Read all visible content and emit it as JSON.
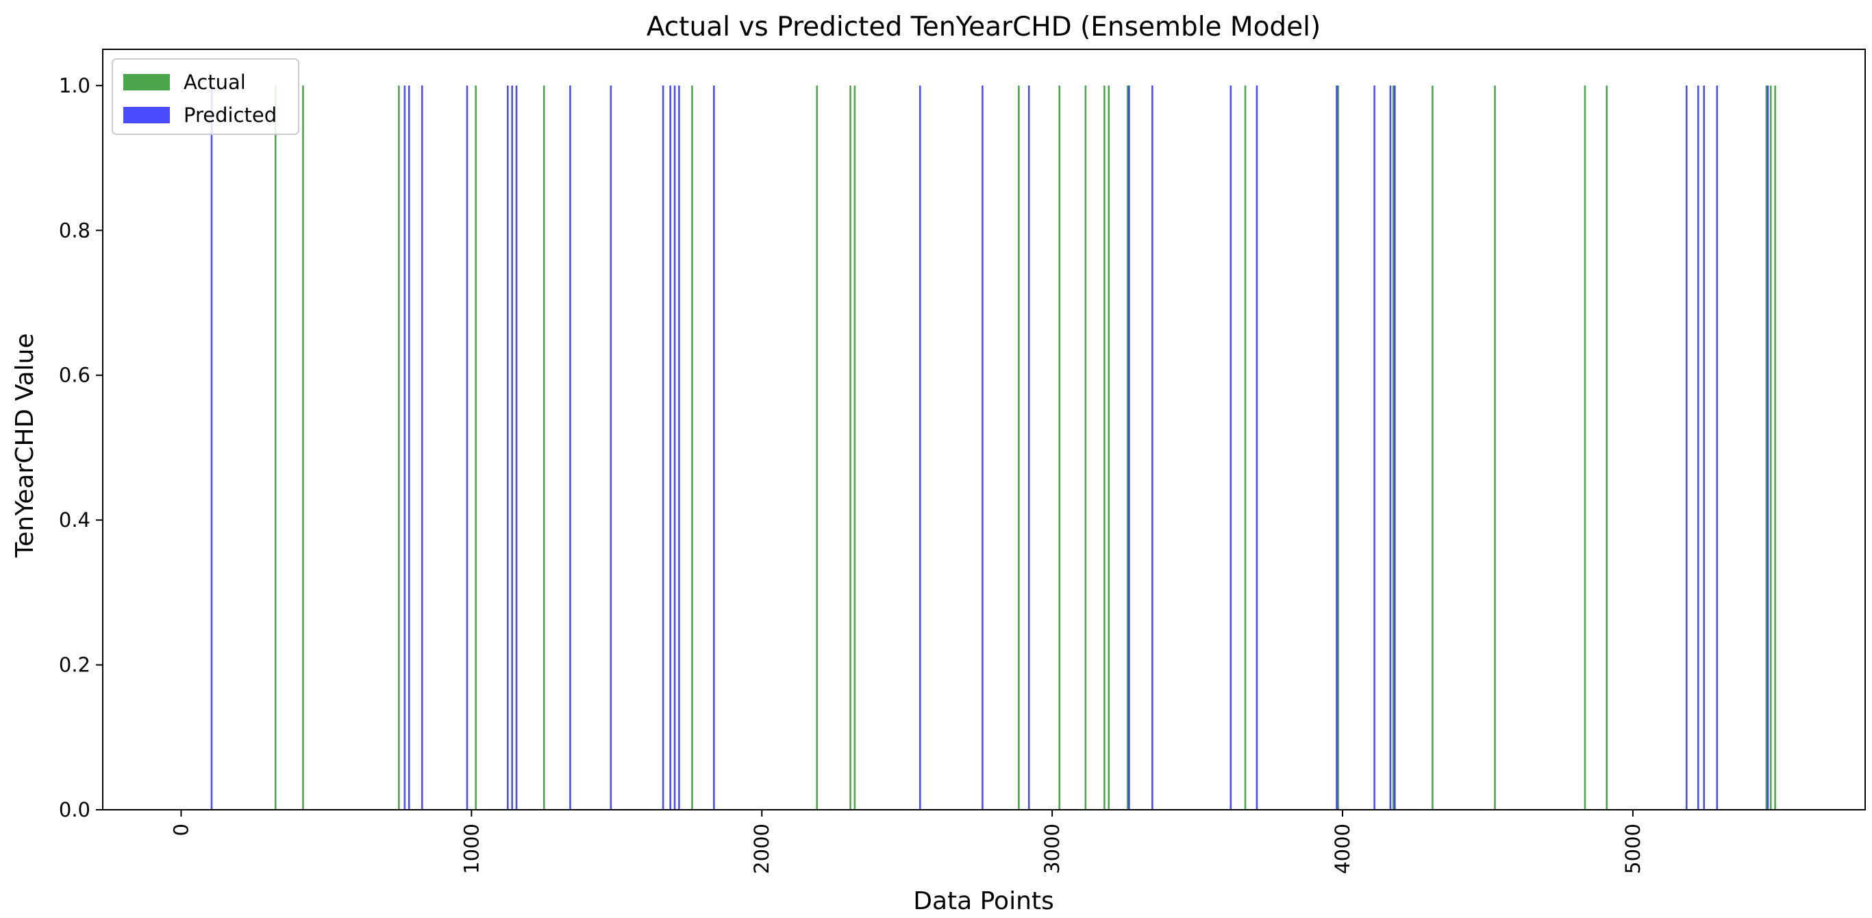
{
  "chart_data": {
    "type": "bar",
    "title": "Actual vs Predicted TenYearCHD (Ensemble Model)",
    "xlabel": "Data Points",
    "ylabel": "TenYearCHD Value",
    "xlim": [
      -270,
      5800
    ],
    "ylim": [
      0,
      1.05
    ],
    "x_ticks": [
      0,
      1000,
      2000,
      3000,
      4000,
      5000
    ],
    "y_ticks": [
      0.0,
      0.2,
      0.4,
      0.6,
      0.8,
      1.0
    ],
    "y_tick_labels": [
      "0.0",
      "0.2",
      "0.4",
      "0.6",
      "0.8",
      "1.0"
    ],
    "grid": false,
    "legend_position": "top-left",
    "series": [
      {
        "name": "Actual",
        "color": "#008000",
        "value": 1.0,
        "x": [
          325,
          420,
          750,
          1015,
          1250,
          1760,
          2190,
          2305,
          2320,
          2885,
          3025,
          3115,
          3180,
          3195,
          3260,
          3665,
          3985,
          4175,
          4310,
          4525,
          4835,
          4910,
          5460,
          5475,
          5490
        ]
      },
      {
        "name": "Predicted",
        "color": "#0000ff",
        "value": 1.0,
        "x": [
          105,
          770,
          785,
          830,
          985,
          1125,
          1140,
          1155,
          1340,
          1480,
          1660,
          1685,
          1700,
          1715,
          1835,
          2545,
          2760,
          2920,
          3265,
          3345,
          3615,
          3705,
          3980,
          4110,
          4165,
          4180,
          5185,
          5225,
          5245,
          5290,
          5465
        ]
      }
    ]
  }
}
